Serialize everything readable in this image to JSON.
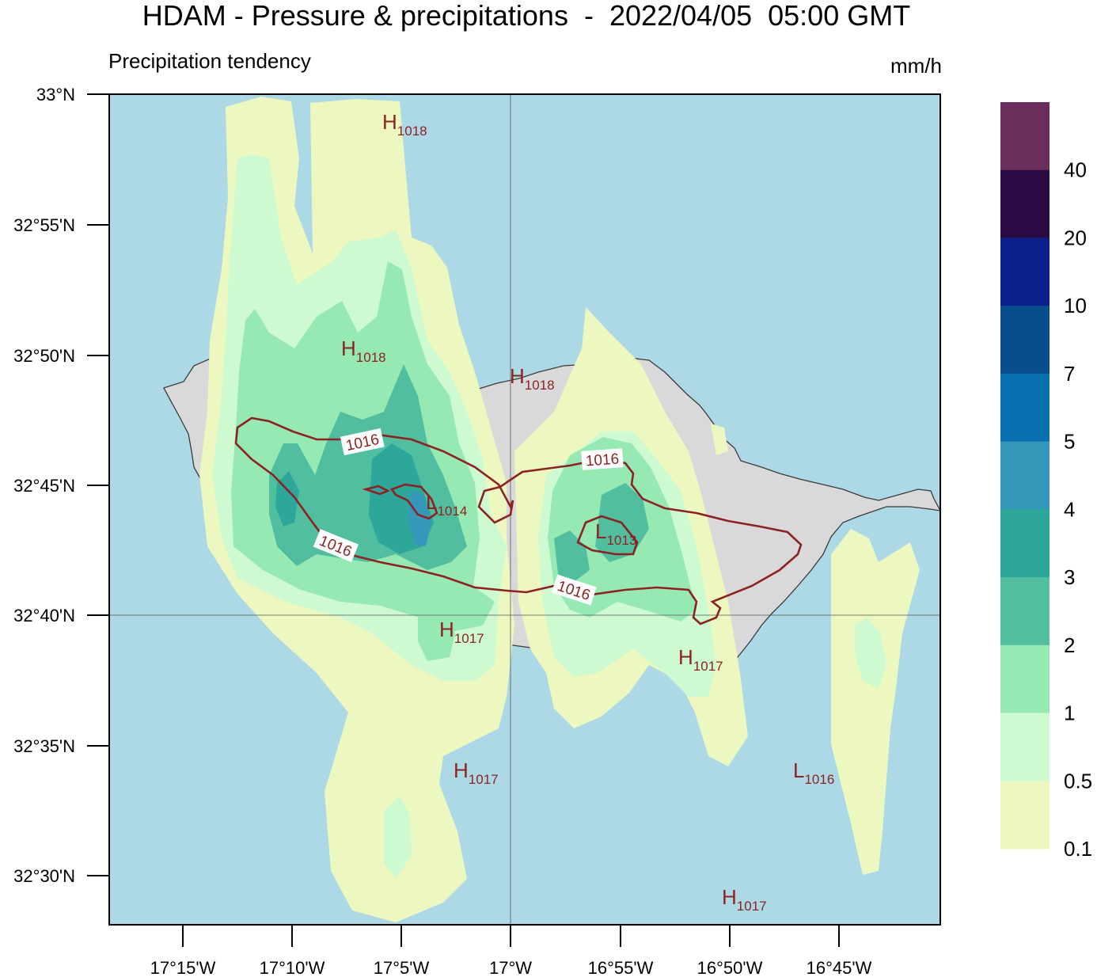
{
  "header": {
    "title": "HDAM - Pressure & precipitations  -  2022/04/05  05:00 GMT",
    "subtitle": "Precipitation tendency",
    "units": "mm/h"
  },
  "axes": {
    "lat_labels": [
      "33°N",
      "32°55'N",
      "32°50'N",
      "32°45'N",
      "32°40'N",
      "32°35'N",
      "32°30'N"
    ],
    "lon_labels": [
      "17°15'W",
      "17°10'W",
      "17°5'W",
      "17°W",
      "16°55'W",
      "16°50'W",
      "16°45'W"
    ]
  },
  "pressure_centers": [
    {
      "type": "H",
      "value": "1018"
    },
    {
      "type": "H",
      "value": "1018"
    },
    {
      "type": "H",
      "value": "1018"
    },
    {
      "type": "L",
      "value": "1014"
    },
    {
      "type": "L",
      "value": "1013"
    },
    {
      "type": "H",
      "value": "1017"
    },
    {
      "type": "H",
      "value": "1017"
    },
    {
      "type": "H",
      "value": "1017"
    },
    {
      "type": "L",
      "value": "1016"
    },
    {
      "type": "H",
      "value": "1017"
    }
  ],
  "isobar_labels": [
    "1016",
    "1016",
    "1016",
    "1016"
  ],
  "colorbar": {
    "labels": [
      "40",
      "20",
      "10",
      "7",
      "5",
      "4",
      "3",
      "2",
      "1",
      "0.5",
      "0.1"
    ],
    "colors": [
      "#6b2d5c",
      "#2a0a42",
      "#0c1f8c",
      "#064f8a",
      "#0a6fb0",
      "#3598ba",
      "#2ea79b",
      "#51bf9f",
      "#97e9b4",
      "#cdfad0",
      "#ecf8c0"
    ]
  },
  "colors": {
    "sea": "#add8e6",
    "land": "#d9d9d9",
    "isobar": "#8b2323"
  }
}
